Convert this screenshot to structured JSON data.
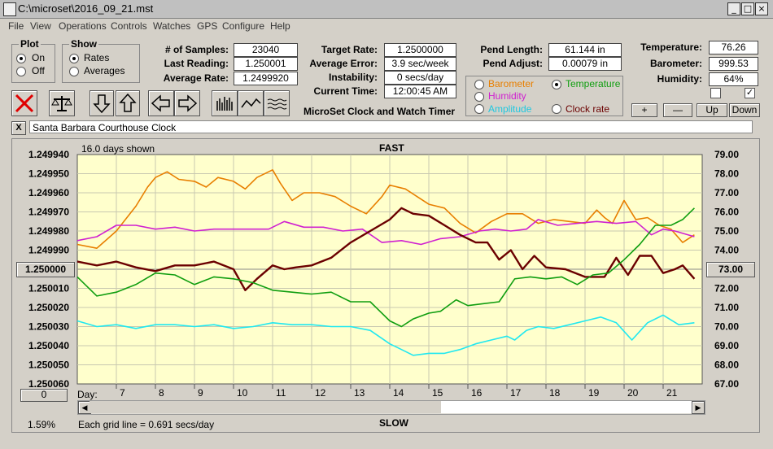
{
  "window": {
    "title": "C:\\microset\\2016_09_21.mst"
  },
  "menu": [
    "File",
    "View",
    "Operations",
    "Controls",
    "Watches",
    "GPS",
    "Configure",
    "Help"
  ],
  "plot": {
    "title": "Plot",
    "on": "On",
    "off": "Off"
  },
  "show": {
    "title": "Show",
    "rates": "Rates",
    "averages": "Averages"
  },
  "stats": {
    "samples_label": "# of Samples:",
    "samples": "23040",
    "last_label": "Last Reading:",
    "last": "1.250001",
    "avg_label": "Average Rate:",
    "avg": "1.2499920",
    "target_label": "Target Rate:",
    "target": "1.2500000",
    "error_label": "Average Error:",
    "error": "3.9 sec/week",
    "instab_label": "Instability:",
    "instab": "0 secs/day",
    "time_label": "Current Time:",
    "time": "12:00:45 AM",
    "pendlen_label": "Pend Length:",
    "pendlen": "61.144 in",
    "pendadj_label": "Pend Adjust:",
    "pendadj": "0.00079 in",
    "temp_label": "Temperature:",
    "temp": "76.26",
    "baro_label": "Barometer:",
    "baro": "999.53",
    "hum_label": "Humidity:",
    "hum": "64%"
  },
  "app_caption": "MicroSet Clock and Watch Timer",
  "channels": {
    "barometer": "Barometer",
    "temperature": "Temperature",
    "humidity": "Humidity",
    "amplitude": "Amplitude",
    "clockrate": "Clock rate"
  },
  "adjust": {
    "plus": "+",
    "minus": "—",
    "up": "Up",
    "down": "Down"
  },
  "clock_name": "Santa Barbara Courthouse Clock",
  "close_glyph": "X",
  "colors": {
    "barometer": "#e87f00",
    "temperature": "#109e10",
    "humidity": "#d020d0",
    "amplitude": "#20e8f0",
    "rate": "#6b0000",
    "plot_bg": "#ffffcc"
  },
  "chart_data": {
    "type": "line",
    "header_left": "16.0 days shown",
    "top_label": "FAST",
    "bottom_label": "SLOW",
    "footer": "Each grid line = 0.691 secs/day",
    "percent": "1.59%",
    "left_button": "0",
    "center_button": "1.250000",
    "right_button": "73.00",
    "x_label": "Day:",
    "x_ticks": [
      "7",
      "8",
      "9",
      "10",
      "11",
      "12",
      "13",
      "14",
      "15",
      "16",
      "17",
      "18",
      "19",
      "20",
      "21"
    ],
    "left_ticks": [
      "1.249940",
      "1.249950",
      "1.249960",
      "1.249970",
      "1.249980",
      "1.249990",
      "1.250000",
      "1.250010",
      "1.250020",
      "1.250030",
      "1.250040",
      "1.250050",
      "1.250060"
    ],
    "right_ticks": [
      "79.00",
      "78.00",
      "77.00",
      "76.00",
      "75.00",
      "74.00",
      "73.00",
      "72.00",
      "71.00",
      "70.00",
      "69.00",
      "68.00",
      "67.00"
    ],
    "right_ylim": [
      67,
      79
    ],
    "xlim": [
      6,
      22
    ],
    "series": [
      {
        "key": "barometer",
        "x": [
          6.0,
          6.5,
          7.0,
          7.5,
          7.8,
          8.0,
          8.3,
          8.6,
          9.0,
          9.3,
          9.6,
          10.0,
          10.3,
          10.6,
          11.0,
          11.2,
          11.5,
          11.8,
          12.2,
          12.6,
          13.0,
          13.4,
          13.8,
          14.0,
          14.4,
          14.7,
          15.0,
          15.4,
          15.8,
          16.2,
          16.6,
          17.0,
          17.4,
          17.8,
          18.2,
          18.6,
          19.0,
          19.3,
          19.5,
          19.7,
          20.0,
          20.3,
          20.6,
          20.9,
          21.2,
          21.5,
          21.8
        ],
        "y": [
          74.3,
          74.1,
          75.0,
          76.3,
          77.3,
          77.8,
          78.1,
          77.7,
          77.6,
          77.3,
          77.8,
          77.6,
          77.2,
          77.8,
          78.2,
          77.5,
          76.6,
          77.0,
          77.0,
          76.8,
          76.3,
          75.9,
          76.8,
          77.4,
          77.2,
          76.8,
          76.4,
          76.2,
          75.4,
          74.9,
          75.5,
          75.9,
          75.9,
          75.4,
          75.6,
          75.5,
          75.4,
          76.1,
          75.7,
          75.4,
          76.6,
          75.6,
          75.7,
          75.3,
          75.1,
          74.4,
          74.8
        ]
      },
      {
        "key": "humidity",
        "x": [
          6.0,
          6.5,
          7.0,
          7.5,
          8.0,
          8.5,
          9.0,
          9.5,
          10.0,
          10.5,
          10.9,
          11.3,
          11.8,
          12.3,
          12.8,
          13.3,
          13.8,
          14.3,
          14.8,
          15.3,
          15.8,
          16.3,
          16.7,
          17.1,
          17.5,
          17.8,
          18.3,
          18.8,
          19.3,
          19.8,
          20.3,
          20.7,
          21.0,
          21.3,
          21.8
        ],
        "y": [
          74.5,
          74.7,
          75.3,
          75.3,
          75.1,
          75.2,
          75.0,
          75.1,
          75.1,
          75.1,
          75.1,
          75.5,
          75.2,
          75.2,
          75.0,
          75.1,
          74.4,
          74.5,
          74.3,
          74.6,
          74.7,
          75.0,
          75.1,
          75.0,
          75.1,
          75.6,
          75.3,
          75.4,
          75.5,
          75.4,
          75.5,
          74.8,
          75.1,
          75.0,
          74.7
        ]
      },
      {
        "key": "rate",
        "x": [
          6.0,
          6.5,
          7.0,
          7.5,
          8.0,
          8.5,
          9.0,
          9.5,
          10.0,
          10.3,
          10.6,
          11.0,
          11.3,
          11.6,
          12.0,
          12.5,
          13.0,
          13.5,
          14.0,
          14.3,
          14.6,
          15.0,
          15.4,
          15.8,
          16.2,
          16.5,
          16.8,
          17.1,
          17.4,
          17.7,
          18.0,
          18.5,
          19.0,
          19.5,
          19.8,
          20.1,
          20.4,
          20.7,
          21.0,
          21.3,
          21.5,
          21.8
        ],
        "y": [
          1.249996,
          1.249998,
          1.249996,
          1.249999,
          1.250001,
          1.249998,
          1.249998,
          1.249996,
          1.25,
          1.250011,
          1.250005,
          1.249998,
          1.25,
          1.249999,
          1.249998,
          1.249994,
          1.249986,
          1.24998,
          1.249974,
          1.249968,
          1.249971,
          1.249972,
          1.249977,
          1.249982,
          1.249986,
          1.249986,
          1.249995,
          1.24999,
          1.25,
          1.249993,
          1.249999,
          1.25,
          1.250004,
          1.250004,
          1.249994,
          1.250003,
          1.249993,
          1.249993,
          1.250002,
          1.25,
          1.249998,
          1.250005
        ]
      },
      {
        "key": "temperature",
        "x": [
          6.0,
          6.5,
          7.0,
          7.5,
          8.0,
          8.5,
          9.0,
          9.5,
          10.0,
          10.5,
          11.0,
          11.5,
          12.0,
          12.5,
          13.0,
          13.5,
          14.0,
          14.3,
          14.6,
          15.0,
          15.3,
          15.7,
          16.0,
          16.4,
          16.8,
          17.2,
          17.6,
          18.0,
          18.4,
          18.8,
          19.2,
          19.6,
          20.0,
          20.4,
          20.8,
          21.2,
          21.5,
          21.8
        ],
        "y": [
          72.6,
          71.6,
          71.8,
          72.2,
          72.8,
          72.7,
          72.2,
          72.6,
          72.5,
          72.3,
          71.9,
          71.8,
          71.7,
          71.8,
          71.3,
          71.3,
          70.3,
          70.0,
          70.4,
          70.7,
          70.8,
          71.4,
          71.1,
          71.2,
          71.3,
          72.5,
          72.6,
          72.5,
          72.6,
          72.2,
          72.7,
          72.8,
          73.5,
          74.3,
          75.3,
          75.3,
          75.6,
          76.2
        ]
      },
      {
        "key": "amplitude",
        "x": [
          6.0,
          6.5,
          7.0,
          7.5,
          8.0,
          8.5,
          9.0,
          9.5,
          10.0,
          10.5,
          11.0,
          11.5,
          12.0,
          12.5,
          13.0,
          13.5,
          14.0,
          14.3,
          14.6,
          15.0,
          15.4,
          15.8,
          16.2,
          16.6,
          17.0,
          17.2,
          17.5,
          17.8,
          18.2,
          18.6,
          19.0,
          19.4,
          19.8,
          20.2,
          20.6,
          21.0,
          21.4,
          21.8
        ],
        "y": [
          70.3,
          70.0,
          70.1,
          69.9,
          70.1,
          70.1,
          70.0,
          70.1,
          69.9,
          70.0,
          70.2,
          70.1,
          70.1,
          70.0,
          70.0,
          69.8,
          69.1,
          68.8,
          68.5,
          68.6,
          68.6,
          68.8,
          69.1,
          69.3,
          69.5,
          69.3,
          69.8,
          70.0,
          69.9,
          70.1,
          70.3,
          70.5,
          70.2,
          69.3,
          70.2,
          70.6,
          70.1,
          70.2
        ]
      }
    ]
  }
}
